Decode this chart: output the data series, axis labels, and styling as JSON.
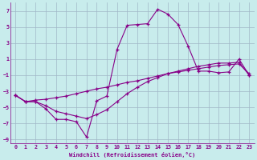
{
  "xlabel": "Windchill (Refroidissement éolien,°C)",
  "bg_color": "#c8ecec",
  "grid_color": "#a0b8c8",
  "line_color": "#880088",
  "xlim": [
    -0.5,
    23.5
  ],
  "ylim": [
    -9.5,
    8.0
  ],
  "yticks": [
    -9,
    -7,
    -5,
    -3,
    -1,
    1,
    3,
    5,
    7
  ],
  "xticks": [
    0,
    1,
    2,
    3,
    4,
    5,
    6,
    7,
    8,
    9,
    10,
    11,
    12,
    13,
    14,
    15,
    16,
    17,
    18,
    19,
    20,
    21,
    22,
    23
  ],
  "series1_x": [
    0,
    1,
    2,
    3,
    4,
    5,
    6,
    7,
    8,
    9,
    10,
    11,
    12,
    13,
    14,
    15,
    16,
    17,
    18,
    19,
    20,
    21,
    22,
    23
  ],
  "series1_y": [
    -3.5,
    -4.3,
    -4.3,
    -5.2,
    -6.5,
    -6.5,
    -6.8,
    -8.7,
    -4.2,
    -3.6,
    2.2,
    5.2,
    5.3,
    5.4,
    7.2,
    6.6,
    5.3,
    2.6,
    -0.5,
    -0.5,
    -0.7,
    -0.6,
    1.0,
    -1.0
  ],
  "series2_x": [
    0,
    1,
    2,
    3,
    4,
    5,
    6,
    7,
    8,
    9,
    10,
    11,
    12,
    13,
    14,
    15,
    16,
    17,
    18,
    19,
    20,
    21,
    22,
    23
  ],
  "series2_y": [
    -3.5,
    -4.3,
    -4.1,
    -4.0,
    -3.8,
    -3.6,
    -3.3,
    -3.0,
    -2.7,
    -2.5,
    -2.2,
    -1.9,
    -1.7,
    -1.4,
    -1.1,
    -0.8,
    -0.6,
    -0.4,
    -0.2,
    0.0,
    0.2,
    0.3,
    0.4,
    -0.8
  ],
  "series3_x": [
    0,
    1,
    2,
    3,
    4,
    5,
    6,
    7,
    8,
    9,
    10,
    11,
    12,
    13,
    14,
    15,
    16,
    17,
    18,
    19,
    20,
    21,
    22,
    23
  ],
  "series3_y": [
    -3.5,
    -4.3,
    -4.3,
    -4.8,
    -5.5,
    -5.8,
    -6.1,
    -6.4,
    -5.9,
    -5.3,
    -4.3,
    -3.3,
    -2.5,
    -1.8,
    -1.3,
    -0.8,
    -0.5,
    -0.2,
    0.1,
    0.3,
    0.5,
    0.5,
    0.6,
    -1.0
  ],
  "tick_color": "#880088",
  "label_color": "#880088"
}
